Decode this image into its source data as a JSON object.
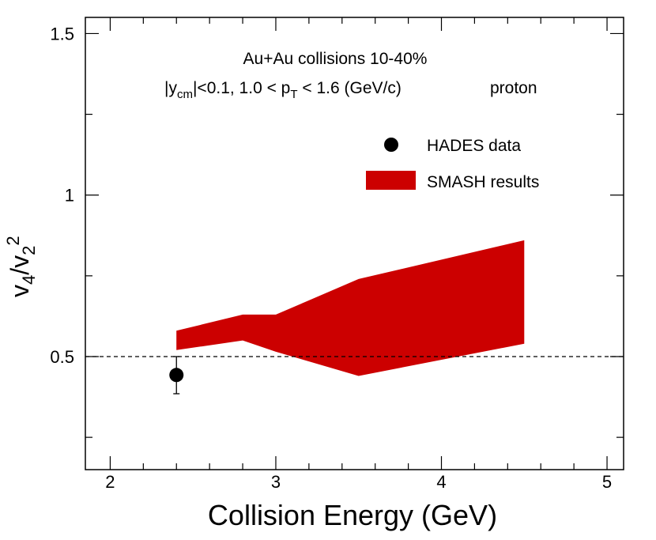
{
  "chart_data": {
    "type": "area",
    "xlabel": "Collision Energy (GeV)",
    "ylabel": {
      "base": "v",
      "sub1": "4",
      "mid": "/v",
      "sub2": "2",
      "sup": "2"
    },
    "xlim": [
      1.85,
      5.1
    ],
    "ylim": [
      0.15,
      1.55
    ],
    "x_ticks": [
      2,
      3,
      4,
      5
    ],
    "y_ticks": [
      0.5,
      1,
      1.5
    ],
    "x_tick_labels": [
      "2",
      "3",
      "4",
      "5"
    ],
    "y_tick_labels": [
      "0.5",
      "1",
      "1.5"
    ],
    "reference_line": {
      "y": 0.5,
      "style": "dashed"
    },
    "annotation_line1": "Au+Au collisions 10-40%",
    "annotation_line2": {
      "a": "|y",
      "a_sub": "cm",
      "b": "|<0.1, 1.0 < p",
      "b_sub": "T",
      "c": " < 1.6 (GeV/c)",
      "d": "proton"
    },
    "series": [
      {
        "name": "HADES data",
        "kind": "points",
        "color": "#000000",
        "points": [
          {
            "x": 2.4,
            "y": 0.443,
            "yerr_low": 0.058,
            "yerr_high": 0.057
          }
        ]
      },
      {
        "name": "SMASH results",
        "kind": "band",
        "color": "#cc0000",
        "x": [
          2.4,
          2.8,
          3.0,
          3.5,
          4.5
        ],
        "upper": [
          0.58,
          0.63,
          0.63,
          0.74,
          0.86
        ],
        "lower": [
          0.52,
          0.55,
          0.515,
          0.44,
          0.54
        ]
      }
    ],
    "legend": [
      {
        "label": "HADES data",
        "marker": "circle"
      },
      {
        "label": "SMASH results",
        "marker": "box"
      }
    ],
    "legend_position": "top-right"
  }
}
